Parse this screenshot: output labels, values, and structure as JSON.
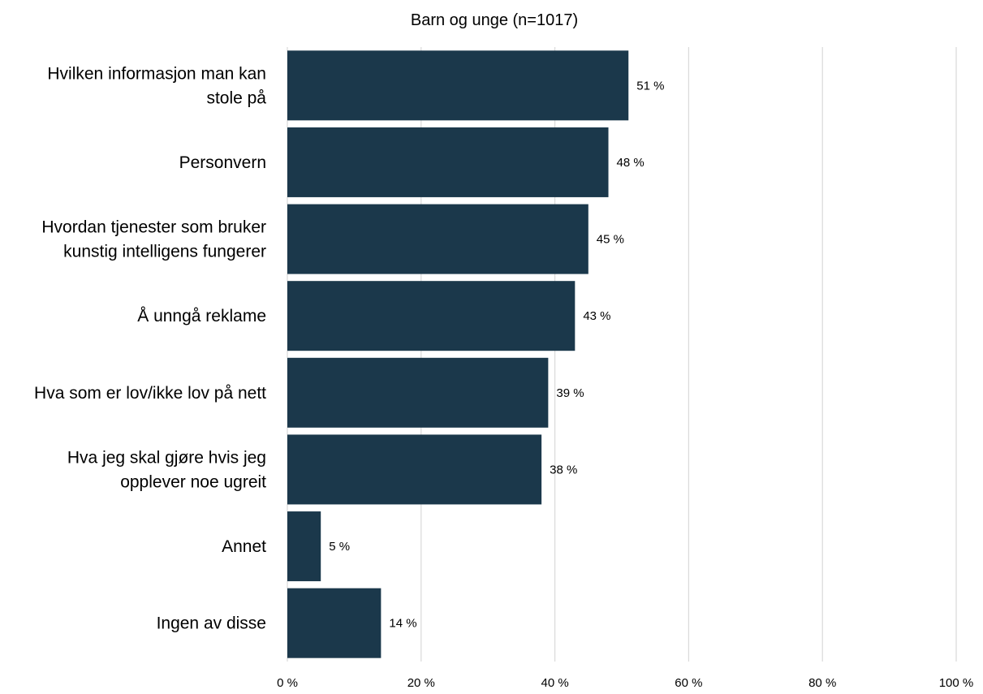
{
  "chart_data": {
    "type": "bar",
    "orientation": "horizontal",
    "title": "Barn og unge (n=1017)",
    "xlabel": "",
    "ylabel": "",
    "categories": [
      "Hvilken informasjon man kan stole på",
      "Personvern",
      "Hvordan tjenester som bruker kunstig intelligens fungerer",
      "Å unngå reklame",
      "Hva som er lov/ikke lov på nett",
      "Hva jeg skal gjøre hvis jeg opplever noe ugreit",
      "Annet",
      "Ingen av disse"
    ],
    "category_lines": [
      [
        "Hvilken informasjon man kan",
        "stole på"
      ],
      [
        "Personvern"
      ],
      [
        "Hvordan tjenester som bruker",
        "kunstig intelligens fungerer"
      ],
      [
        "Å unngå reklame"
      ],
      [
        "Hva som er lov/ikke lov på nett"
      ],
      [
        "Hva jeg skal gjøre hvis jeg",
        "opplever noe ugreit"
      ],
      [
        "Annet"
      ],
      [
        "Ingen av disse"
      ]
    ],
    "values": [
      51,
      48,
      45,
      43,
      39,
      38,
      5,
      14
    ],
    "data_labels": [
      "51 %",
      "48 %",
      "45 %",
      "43 %",
      "39 %",
      "38 %",
      "5 %",
      "14 %"
    ],
    "xlim": [
      0,
      100
    ],
    "xticks": [
      0,
      20,
      40,
      60,
      80,
      100
    ],
    "xtick_labels": [
      "0 %",
      "20 %",
      "40 %",
      "60 %",
      "80 %",
      "100 %"
    ],
    "grid": "vertical",
    "legend": "none",
    "bar_color": "#1b384b",
    "grid_color": "#d9d9d9",
    "text_color": "#000000"
  }
}
